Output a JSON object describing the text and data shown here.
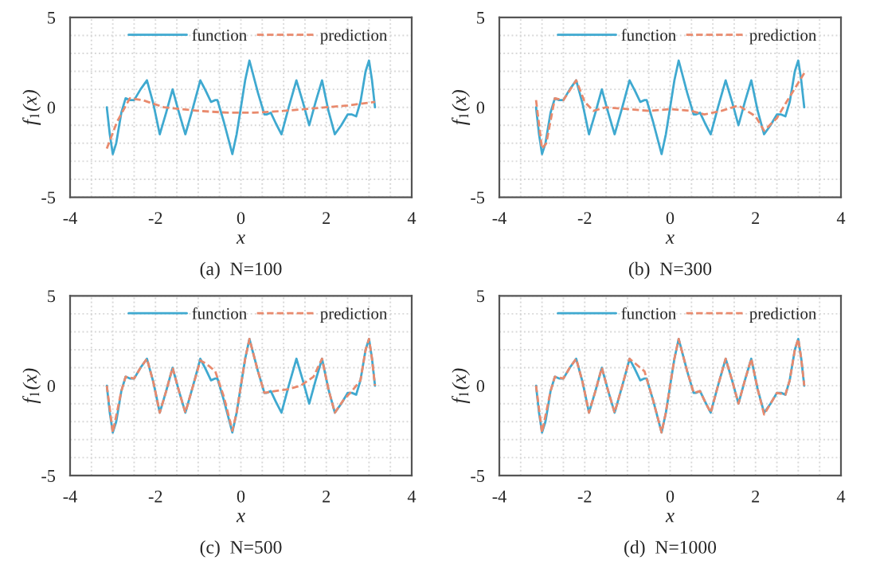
{
  "chart_data": [
    {
      "type": "line",
      "xlabel": "x",
      "ylabel": "f$_{1}$(x)",
      "xlim": [
        -4,
        4
      ],
      "ylim": [
        -5,
        5
      ],
      "xticks": [
        -4,
        -2,
        0,
        2,
        4
      ],
      "yticks": [
        -5,
        0,
        5
      ],
      "grid": true,
      "legend": "top",
      "annotations": [
        "(a)  N=100"
      ],
      "series": [
        {
          "name": "function",
          "color": "#3fa9d0",
          "line_style": "solid",
          "x": [
            -3.14,
            -3.07,
            -3.0,
            -2.92,
            -2.8,
            -2.7,
            -2.6,
            -2.5,
            -2.35,
            -2.2,
            -2.05,
            -1.9,
            -1.75,
            -1.6,
            -1.45,
            -1.3,
            -1.12,
            -0.95,
            -0.82,
            -0.7,
            -0.6,
            -0.55,
            -0.4,
            -0.2,
            -0.1,
            0,
            0.1,
            0.2,
            0.4,
            0.55,
            0.6,
            0.7,
            0.82,
            0.95,
            1.12,
            1.3,
            1.45,
            1.6,
            1.75,
            1.9,
            2.05,
            2.2,
            2.35,
            2.5,
            2.6,
            2.7,
            2.8,
            2.92,
            3.0,
            3.07,
            3.14
          ],
          "values": [
            0,
            -1.5,
            -2.6,
            -2.0,
            -0.3,
            0.5,
            0.4,
            0.4,
            1.0,
            1.5,
            0.2,
            -1.5,
            -0.3,
            1.0,
            -0.3,
            -1.5,
            0,
            1.5,
            0.9,
            0.3,
            0.4,
            0.4,
            -0.8,
            -2.6,
            -1.5,
            0,
            1.5,
            2.6,
            0.8,
            -0.4,
            -0.4,
            -0.3,
            -0.9,
            -1.5,
            0,
            1.5,
            0.3,
            -1.0,
            0.3,
            1.5,
            -0.2,
            -1.5,
            -1.0,
            -0.4,
            -0.4,
            -0.5,
            0.3,
            2.0,
            2.6,
            1.5,
            0
          ]
        },
        {
          "name": "prediction",
          "color": "#e98a6d",
          "line_style": "dashed",
          "x": [
            -3.14,
            -2.9,
            -2.6,
            -2.3,
            -1.8,
            -1.0,
            -0.3,
            0.3,
            1.0,
            1.5,
            2.0,
            2.5,
            3.14
          ],
          "values": [
            -2.3,
            -0.8,
            0.5,
            0.4,
            0,
            -0.2,
            -0.3,
            -0.3,
            -0.2,
            -0.1,
            0,
            0.1,
            0.3
          ]
        }
      ]
    },
    {
      "type": "line",
      "xlabel": "x",
      "ylabel": "f$_{1}$(x)",
      "xlim": [
        -4,
        4
      ],
      "ylim": [
        -5,
        5
      ],
      "xticks": [
        -4,
        -2,
        0,
        2,
        4
      ],
      "yticks": [
        -5,
        0,
        5
      ],
      "grid": true,
      "legend": "top",
      "annotations": [
        "(b)  N=300"
      ],
      "series": [
        {
          "name": "function",
          "color": "#3fa9d0",
          "line_style": "solid",
          "x": [
            -3.14,
            -3.07,
            -3.0,
            -2.92,
            -2.8,
            -2.7,
            -2.6,
            -2.5,
            -2.35,
            -2.2,
            -2.05,
            -1.9,
            -1.75,
            -1.6,
            -1.45,
            -1.3,
            -1.12,
            -0.95,
            -0.82,
            -0.7,
            -0.6,
            -0.55,
            -0.4,
            -0.2,
            -0.1,
            0,
            0.1,
            0.2,
            0.4,
            0.55,
            0.6,
            0.7,
            0.82,
            0.95,
            1.12,
            1.3,
            1.45,
            1.6,
            1.75,
            1.9,
            2.05,
            2.2,
            2.35,
            2.5,
            2.6,
            2.7,
            2.8,
            2.92,
            3.0,
            3.07,
            3.14
          ],
          "values": [
            0,
            -1.5,
            -2.6,
            -2.0,
            -0.3,
            0.5,
            0.4,
            0.4,
            1.0,
            1.5,
            0.2,
            -1.5,
            -0.3,
            1.0,
            -0.3,
            -1.5,
            0,
            1.5,
            0.9,
            0.3,
            0.4,
            0.4,
            -0.8,
            -2.6,
            -1.5,
            0,
            1.5,
            2.6,
            0.8,
            -0.4,
            -0.4,
            -0.3,
            -0.9,
            -1.5,
            0,
            1.5,
            0.3,
            -1.0,
            0.3,
            1.5,
            -0.2,
            -1.5,
            -1.0,
            -0.4,
            -0.4,
            -0.5,
            0.3,
            2.0,
            2.6,
            1.5,
            0
          ]
        },
        {
          "name": "prediction",
          "color": "#e98a6d",
          "line_style": "dashed",
          "x": [
            -3.14,
            -3.0,
            -2.9,
            -2.7,
            -2.5,
            -2.2,
            -2.0,
            -1.8,
            -1.5,
            -1.0,
            -0.5,
            0,
            0.5,
            0.8,
            1.2,
            1.6,
            2.0,
            2.2,
            2.5,
            2.7,
            3.14
          ],
          "values": [
            0.4,
            -2.3,
            -2.0,
            0.5,
            0.4,
            1.5,
            0.3,
            -0.2,
            0,
            -0.1,
            -0.2,
            -0.1,
            -0.2,
            -0.4,
            -0.2,
            0.1,
            -0.5,
            -1.3,
            -0.6,
            0.2,
            1.9
          ]
        }
      ]
    },
    {
      "type": "line",
      "xlabel": "x",
      "ylabel": "f$_{1}$(x)",
      "xlim": [
        -4,
        4
      ],
      "ylim": [
        -5,
        5
      ],
      "xticks": [
        -4,
        -2,
        0,
        2,
        4
      ],
      "yticks": [
        -5,
        0,
        5
      ],
      "grid": true,
      "legend": "top",
      "annotations": [
        "(c)  N=500"
      ],
      "series": [
        {
          "name": "function",
          "color": "#3fa9d0",
          "line_style": "solid",
          "x": [
            -3.14,
            -3.07,
            -3.0,
            -2.92,
            -2.8,
            -2.7,
            -2.6,
            -2.5,
            -2.35,
            -2.2,
            -2.05,
            -1.9,
            -1.75,
            -1.6,
            -1.45,
            -1.3,
            -1.12,
            -0.95,
            -0.82,
            -0.7,
            -0.6,
            -0.55,
            -0.4,
            -0.2,
            -0.1,
            0,
            0.1,
            0.2,
            0.4,
            0.55,
            0.6,
            0.7,
            0.82,
            0.95,
            1.12,
            1.3,
            1.45,
            1.6,
            1.75,
            1.9,
            2.05,
            2.2,
            2.35,
            2.5,
            2.6,
            2.7,
            2.8,
            2.92,
            3.0,
            3.07,
            3.14
          ],
          "values": [
            0,
            -1.5,
            -2.6,
            -2.0,
            -0.3,
            0.5,
            0.4,
            0.4,
            1.0,
            1.5,
            0.2,
            -1.5,
            -0.3,
            1.0,
            -0.3,
            -1.5,
            0,
            1.5,
            0.9,
            0.3,
            0.4,
            0.4,
            -0.8,
            -2.6,
            -1.5,
            0,
            1.5,
            2.6,
            0.8,
            -0.4,
            -0.4,
            -0.3,
            -0.9,
            -1.5,
            0,
            1.5,
            0.3,
            -1.0,
            0.3,
            1.5,
            -0.2,
            -1.5,
            -1.0,
            -0.4,
            -0.4,
            -0.5,
            0.3,
            2.0,
            2.6,
            1.5,
            0
          ]
        },
        {
          "name": "prediction",
          "color": "#e98a6d",
          "line_style": "dashed",
          "x": [
            -3.14,
            -3.0,
            -2.8,
            -2.7,
            -2.5,
            -2.35,
            -2.2,
            -2.05,
            -1.9,
            -1.75,
            -1.6,
            -1.45,
            -1.3,
            -1.12,
            -0.95,
            -0.8,
            -0.6,
            -0.4,
            -0.2,
            -0.1,
            0,
            0.1,
            0.2,
            0.4,
            0.55,
            0.8,
            1.1,
            1.4,
            1.7,
            1.9,
            2.05,
            2.2,
            2.4,
            2.6,
            2.8,
            2.92,
            3.0,
            3.07,
            3.14
          ],
          "values": [
            0,
            -2.6,
            -0.3,
            0.5,
            0.4,
            1.0,
            1.5,
            0.2,
            -1.5,
            -0.3,
            1.0,
            -0.3,
            -1.5,
            0,
            1.4,
            1.2,
            0.8,
            -0.6,
            -2.5,
            -1.5,
            0,
            1.5,
            2.6,
            0.8,
            -0.4,
            -0.3,
            -0.2,
            0,
            0.5,
            1.5,
            -0.2,
            -1.5,
            -0.8,
            -0.3,
            0.3,
            2.0,
            2.6,
            1.5,
            0
          ]
        }
      ]
    },
    {
      "type": "line",
      "xlabel": "x",
      "ylabel": "f$_{1}$(x)",
      "xlim": [
        -4,
        4
      ],
      "ylim": [
        -5,
        5
      ],
      "xticks": [
        -4,
        -2,
        0,
        2,
        4
      ],
      "yticks": [
        -5,
        0,
        5
      ],
      "grid": true,
      "legend": "top",
      "annotations": [
        "(d)  N=1000"
      ],
      "series": [
        {
          "name": "function",
          "color": "#3fa9d0",
          "line_style": "solid",
          "x": [
            -3.14,
            -3.07,
            -3.0,
            -2.92,
            -2.8,
            -2.7,
            -2.6,
            -2.5,
            -2.35,
            -2.2,
            -2.05,
            -1.9,
            -1.75,
            -1.6,
            -1.45,
            -1.3,
            -1.12,
            -0.95,
            -0.82,
            -0.7,
            -0.6,
            -0.55,
            -0.4,
            -0.2,
            -0.1,
            0,
            0.1,
            0.2,
            0.4,
            0.55,
            0.6,
            0.7,
            0.82,
            0.95,
            1.12,
            1.3,
            1.45,
            1.6,
            1.75,
            1.9,
            2.05,
            2.2,
            2.35,
            2.5,
            2.6,
            2.7,
            2.8,
            2.92,
            3.0,
            3.07,
            3.14
          ],
          "values": [
            0,
            -1.5,
            -2.6,
            -2.0,
            -0.3,
            0.5,
            0.4,
            0.4,
            1.0,
            1.5,
            0.2,
            -1.5,
            -0.3,
            1.0,
            -0.3,
            -1.5,
            0,
            1.5,
            0.9,
            0.3,
            0.4,
            0.4,
            -0.8,
            -2.6,
            -1.5,
            0,
            1.5,
            2.6,
            0.8,
            -0.4,
            -0.4,
            -0.3,
            -0.9,
            -1.5,
            0,
            1.5,
            0.3,
            -1.0,
            0.3,
            1.5,
            -0.2,
            -1.5,
            -1.0,
            -0.4,
            -0.4,
            -0.5,
            0.3,
            2.0,
            2.6,
            1.5,
            0
          ]
        },
        {
          "name": "prediction",
          "color": "#e98a6d",
          "line_style": "dashed",
          "x": [
            -3.14,
            -3.0,
            -2.8,
            -2.7,
            -2.5,
            -2.35,
            -2.2,
            -2.05,
            -1.9,
            -1.75,
            -1.6,
            -1.45,
            -1.3,
            -1.12,
            -0.95,
            -0.8,
            -0.6,
            -0.4,
            -0.2,
            -0.1,
            0,
            0.1,
            0.2,
            0.4,
            0.55,
            0.7,
            0.82,
            0.95,
            1.12,
            1.3,
            1.45,
            1.6,
            1.75,
            1.9,
            2.05,
            2.2,
            2.35,
            2.5,
            2.7,
            2.8,
            2.92,
            3.0,
            3.07,
            3.14
          ],
          "values": [
            0,
            -2.6,
            -0.3,
            0.5,
            0.4,
            1.0,
            1.5,
            0.2,
            -1.5,
            -0.3,
            1.0,
            -0.3,
            -1.5,
            0,
            1.5,
            1.2,
            0.8,
            -0.8,
            -2.6,
            -1.5,
            0,
            1.5,
            2.6,
            0.8,
            -0.4,
            -0.3,
            -0.9,
            -1.5,
            0,
            1.5,
            0.3,
            -1.0,
            0.3,
            1.5,
            -0.2,
            -1.6,
            -1.0,
            -0.4,
            -0.5,
            0.3,
            2.0,
            2.6,
            1.5,
            0
          ]
        }
      ]
    }
  ]
}
